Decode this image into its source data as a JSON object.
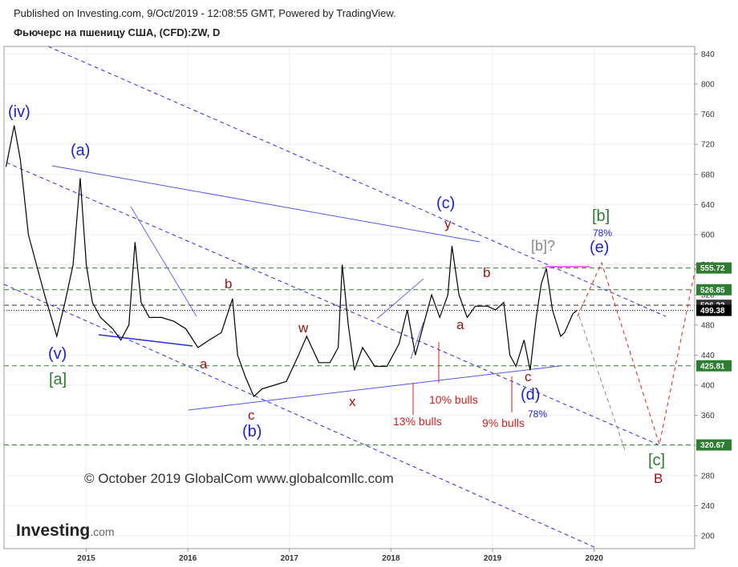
{
  "header": {
    "published": "Published on Investing.com, 9/Oct/2019 - 12:08:55 GMT, Powered by TradingView.",
    "title": "Фьючерс на пшеницу США, (CFD):ZW, D"
  },
  "chart_data": {
    "type": "line",
    "color": "#000000",
    "x": [
      2014.21,
      2014.29,
      2014.35,
      2014.43,
      2014.51,
      2014.59,
      2014.71,
      2014.79,
      2014.87,
      2014.94,
      2015.0,
      2015.06,
      2015.14,
      2015.26,
      2015.34,
      2015.42,
      2015.48,
      2015.54,
      2015.62,
      2015.74,
      2015.86,
      2015.98,
      2016.1,
      2016.21,
      2016.33,
      2016.44,
      2016.49,
      2016.57,
      2016.65,
      2016.73,
      2016.85,
      2016.97,
      2017.09,
      2017.17,
      2017.29,
      2017.4,
      2017.48,
      2017.52,
      2017.58,
      2017.64,
      2017.72,
      2017.84,
      2017.96,
      2018.08,
      2018.16,
      2018.24,
      2018.32,
      2018.4,
      2018.48,
      2018.56,
      2018.6,
      2018.67,
      2018.75,
      2018.83,
      2018.95,
      2019.03,
      2019.11,
      2019.17,
      2019.23,
      2019.31,
      2019.37,
      2019.43,
      2019.48,
      2019.53,
      2019.59,
      2019.67,
      2019.71,
      2019.79,
      2019.83
    ],
    "values": [
      690,
      745,
      700,
      600,
      560,
      520,
      465,
      510,
      560,
      675,
      560,
      510,
      490,
      475,
      460,
      480,
      590,
      510,
      490,
      490,
      485,
      475,
      450,
      460,
      470,
      515,
      440,
      410,
      385,
      395,
      400,
      405,
      440,
      465,
      430,
      430,
      450,
      560,
      480,
      420,
      450,
      425,
      425,
      455,
      500,
      440,
      480,
      520,
      490,
      520,
      585,
      520,
      490,
      505,
      505,
      500,
      510,
      440,
      425,
      460,
      420,
      490,
      535,
      555,
      500,
      465,
      470,
      495,
      499.38
    ],
    "xlim": [
      2014.19,
      2020.99
    ],
    "xticks": [
      2015,
      2016,
      2017,
      2018,
      2019,
      2020
    ],
    "ylim": [
      183,
      850
    ],
    "yticks": [
      200,
      240,
      280,
      320,
      360,
      400,
      440,
      480,
      520,
      560,
      600,
      640,
      680,
      720,
      760,
      800,
      840
    ],
    "grid": true,
    "levels": [
      {
        "value": 555.72,
        "color": "#2e7d32",
        "style": "dashed"
      },
      {
        "value": 526.85,
        "color": "#2e7d32",
        "style": "dashed"
      },
      {
        "value": 506.22,
        "color": "#333333",
        "style": "dashed"
      },
      {
        "value": 499.38,
        "color": "#000000",
        "style": "dotted"
      },
      {
        "value": 425.81,
        "color": "#2e7d32",
        "style": "dashed"
      },
      {
        "value": 320.67,
        "color": "#2e7d32",
        "style": "dashed"
      }
    ],
    "annotations": [
      "(iv)",
      "(a)",
      "(v)",
      "[a]",
      "a",
      "b",
      "c",
      "(b)",
      "w",
      "x",
      "y",
      "(c)",
      "a",
      "b",
      "c",
      "(d)",
      "78%",
      "[b]?",
      "[b]",
      "78%",
      "(e)",
      "[c]",
      "B",
      "13% bulls",
      "10% bulls",
      "9% bulls"
    ],
    "copyright": "© October 2019 GlobalCom www.globalcomllc.com"
  },
  "logo": {
    "brand": "Investing",
    "suffix": ".com"
  }
}
